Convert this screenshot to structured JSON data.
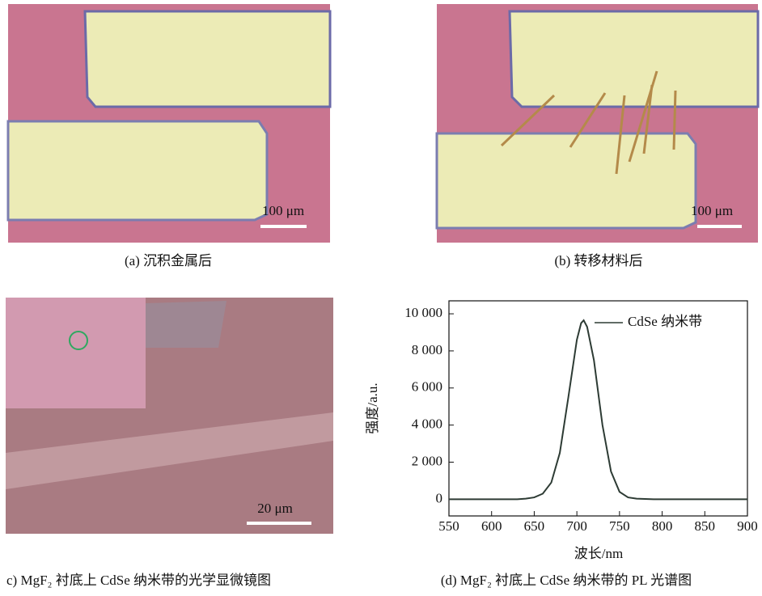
{
  "figure": {
    "panels": [
      {
        "caption": "(a) 沉积金属后",
        "scale": "100 μm"
      },
      {
        "caption": "(b) 转移材料后",
        "scale": "100 μm"
      },
      {
        "caption": "c) MgF₂ 衬底上 CdSe 纳米带的光学显微镜图",
        "scale": "20 μm"
      }
    ]
  },
  "chart_data": {
    "type": "line",
    "caption": "(d) MgF₂ 衬底上 CdSe 纳米带的 PL 光谱图",
    "x_label": "波长/nm",
    "y_label": "强度/a.u.",
    "x": [
      550,
      570,
      590,
      610,
      630,
      640,
      650,
      660,
      670,
      680,
      690,
      700,
      705,
      708,
      712,
      720,
      730,
      740,
      750,
      760,
      770,
      790,
      820,
      850,
      880,
      900
    ],
    "series": [
      {
        "name": "CdSe 纳米带",
        "color": "#2d3b34",
        "values": [
          0,
          0,
          0,
          0,
          0,
          30,
          100,
          300,
          900,
          2500,
          5500,
          8600,
          9500,
          9650,
          9300,
          7500,
          4000,
          1500,
          400,
          100,
          30,
          0,
          0,
          0,
          0,
          0
        ]
      }
    ],
    "xlim": [
      550,
      900
    ],
    "xticks": [
      550,
      600,
      650,
      700,
      750,
      800,
      850,
      900
    ],
    "ylim": [
      -900,
      10700
    ],
    "yticks": [
      0,
      {
        "value": 2000,
        "label": "2 000"
      },
      {
        "value": 4000,
        "label": "4 000"
      },
      {
        "value": 6000,
        "label": "6 000"
      },
      {
        "value": 8000,
        "label": "8 000"
      },
      {
        "value": 10000,
        "label": "10 000"
      }
    ],
    "legend": "upper right"
  }
}
